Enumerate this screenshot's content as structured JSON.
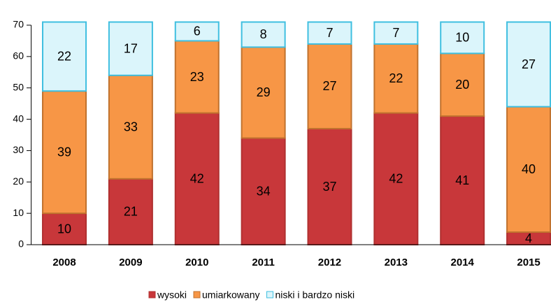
{
  "chart_data": {
    "type": "stacked_bar",
    "categories": [
      "2008",
      "2009",
      "2010",
      "2011",
      "2012",
      "2013",
      "2014",
      "2015"
    ],
    "series": [
      {
        "name": "wysoki",
        "color": "#c8373a",
        "values": [
          10,
          21,
          42,
          34,
          37,
          42,
          41,
          4
        ]
      },
      {
        "name": "umiarkowany",
        "color": "#f79646",
        "values": [
          39,
          33,
          23,
          29,
          27,
          22,
          20,
          40
        ]
      },
      {
        "name": "niski i bardzo niski",
        "color": "#dbf5fb",
        "values": [
          22,
          17,
          6,
          8,
          7,
          7,
          10,
          27
        ]
      }
    ],
    "ylim": [
      0,
      70
    ],
    "yticks": [
      0,
      10,
      20,
      30,
      40,
      50,
      60,
      70
    ],
    "grid": false,
    "legend": "bottom"
  }
}
